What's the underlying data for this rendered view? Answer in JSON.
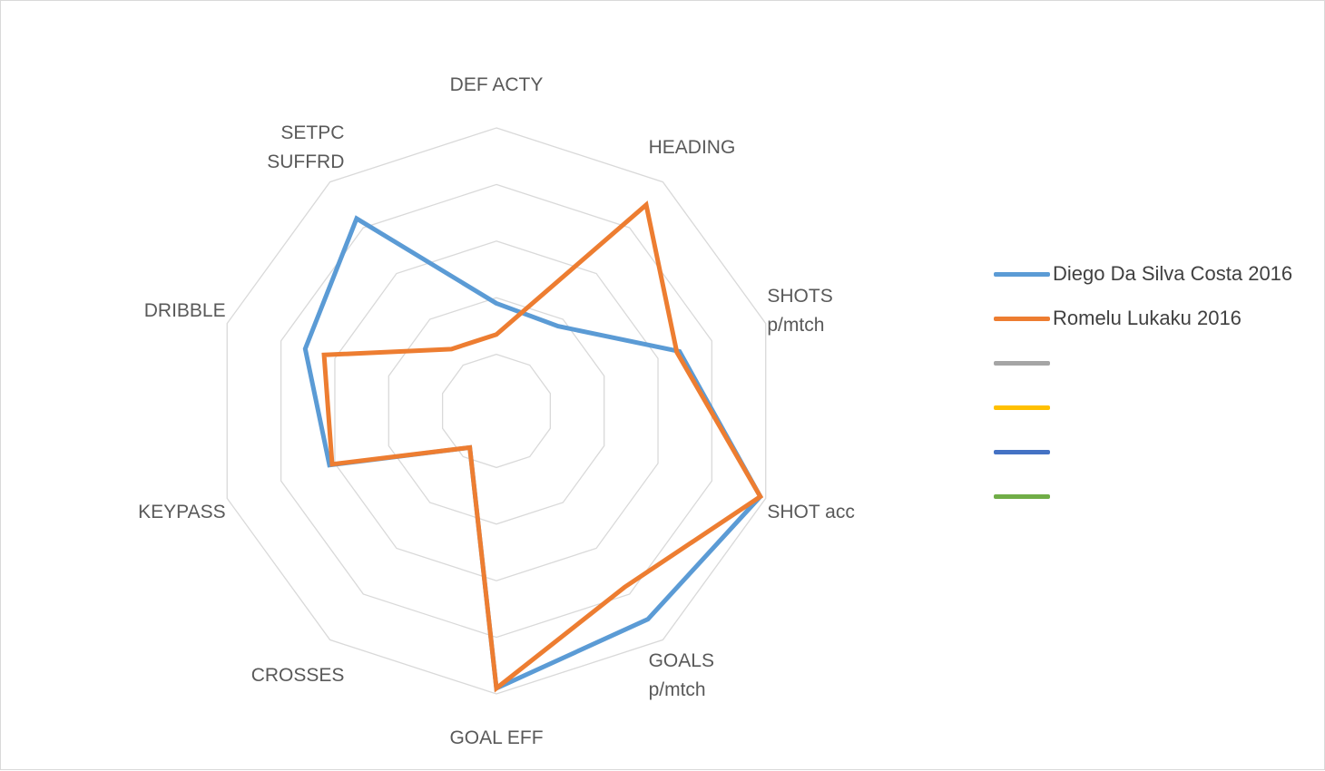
{
  "chart_data": {
    "type": "radar",
    "title": "",
    "axes": [
      [
        "DEF ACTY"
      ],
      [
        "HEADING"
      ],
      [
        "SHOTS",
        "p/mtch"
      ],
      [
        "SHOT acc"
      ],
      [
        "GOALS",
        "p/mtch"
      ],
      [
        "GOAL EFF"
      ],
      [
        "CROSSES"
      ],
      [
        "KEYPASS"
      ],
      [
        "DRIBBLE"
      ],
      [
        "SETPC",
        "SUFFRD"
      ]
    ],
    "rlim": [
      0,
      5
    ],
    "rings": 5,
    "grid": true,
    "legend_position": "right",
    "series": [
      {
        "name": "Diego Da Silva Costa 2016",
        "color": "#5b9bd5",
        "values": [
          1.9,
          1.85,
          3.4,
          4.9,
          4.55,
          4.9,
          0.8,
          3.1,
          3.55,
          4.2
        ]
      },
      {
        "name": "Romelu Lukaku 2016",
        "color": "#ed7d31",
        "values": [
          1.35,
          4.5,
          3.35,
          4.9,
          3.85,
          4.9,
          0.8,
          3.05,
          3.2,
          1.35
        ]
      }
    ],
    "empty_series_colors": [
      "#a5a5a5",
      "#ffc000",
      "#4472c4",
      "#70ad47"
    ]
  }
}
